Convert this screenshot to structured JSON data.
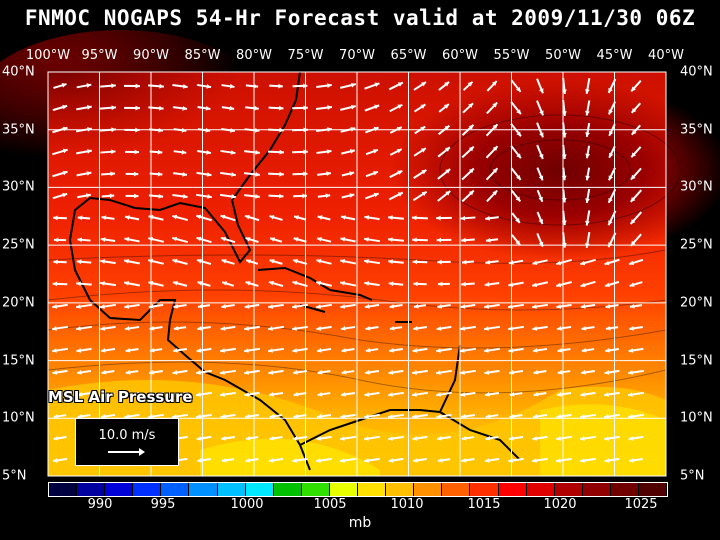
{
  "title": "FNMOC NOGAPS 54-Hr Forecast valid at 2009/11/30 06Z",
  "longitudes": [
    "100°W",
    "95°W",
    "90°W",
    "85°W",
    "80°W",
    "75°W",
    "70°W",
    "65°W",
    "60°W",
    "55°W",
    "50°W",
    "45°W",
    "40°W"
  ],
  "latitudes": [
    "40°N",
    "35°N",
    "30°N",
    "25°N",
    "20°N",
    "15°N",
    "10°N",
    "5°N"
  ],
  "overlay_label": "MSL Air Pressure",
  "reference_vector": {
    "label": "10.0 m/s"
  },
  "colorbar": {
    "colors": [
      "#000040",
      "#0000a0",
      "#0000d8",
      "#0030ff",
      "#0060ff",
      "#0090ff",
      "#00c0ff",
      "#00e8ff",
      "#00c000",
      "#30e000",
      "#e8ff00",
      "#ffe000",
      "#ffc000",
      "#ff9000",
      "#ff6000",
      "#ff3000",
      "#ff0000",
      "#e00000",
      "#b00000",
      "#900000",
      "#700000",
      "#500000"
    ],
    "labels": [
      "990",
      "995",
      "1000",
      "1005",
      "1010",
      "1015",
      "1020",
      "1025"
    ],
    "units": "mb"
  },
  "colors": {
    "land": "#000000",
    "grid": "#ffffff",
    "vector": "#ffffff"
  }
}
